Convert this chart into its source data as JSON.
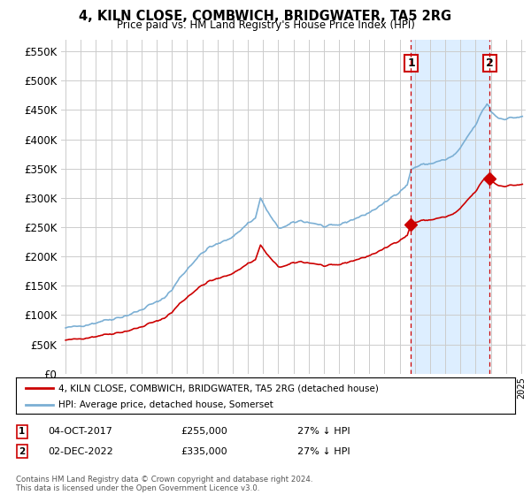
{
  "title": "4, KILN CLOSE, COMBWICH, BRIDGWATER, TA5 2RG",
  "subtitle": "Price paid vs. HM Land Registry's House Price Index (HPI)",
  "legend_line1": "4, KILN CLOSE, COMBWICH, BRIDGWATER, TA5 2RG (detached house)",
  "legend_line2": "HPI: Average price, detached house, Somerset",
  "footnote": "Contains HM Land Registry data © Crown copyright and database right 2024.\nThis data is licensed under the Open Government Licence v3.0.",
  "sale1_date": "04-OCT-2017",
  "sale1_price": "£255,000",
  "sale1_hpi": "27% ↓ HPI",
  "sale2_date": "02-DEC-2022",
  "sale2_price": "£335,000",
  "sale2_hpi": "27% ↓ HPI",
  "hpi_color": "#7bafd4",
  "hpi_fill_color": "#ddeeff",
  "sale_color": "#cc0000",
  "vline_color": "#cc0000",
  "background_color": "#ffffff",
  "plot_bg_color": "#ffffff",
  "grid_color": "#cccccc",
  "sale1_x": 2017.75,
  "sale2_x": 2022.917,
  "ylim": [
    0,
    570000
  ],
  "xlim": [
    1994.7,
    2025.3
  ]
}
